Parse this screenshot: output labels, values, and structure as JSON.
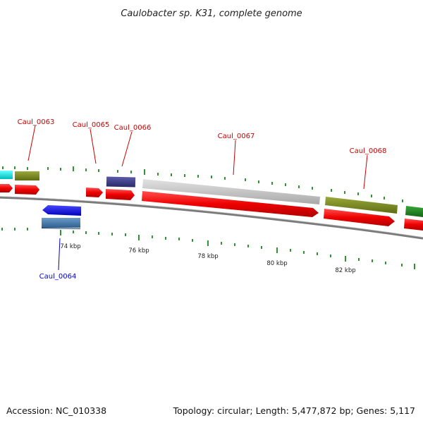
{
  "title": "Caulobacter sp. K31, complete genome",
  "footer": {
    "accession": "Accession: NC_010338",
    "summary": "Topology: circular; Length: 5,477,872 bp; Genes: 5,117"
  },
  "scale": {
    "labels": [
      "74 kbp",
      "76 kbp",
      "78 kbp",
      "80 kbp",
      "82 kbp"
    ]
  },
  "gene_labels": {
    "fwd": [
      "Caul_0063",
      "Caul_0065",
      "Caul_0066",
      "Caul_0067",
      "Caul_0068"
    ],
    "rev": [
      "Caul_0064"
    ]
  },
  "colors": {
    "backbone": "#808080",
    "cds": "#ee0000",
    "tick": "#007700",
    "gene_label_fwd": "#cc0000",
    "gene_label_rev": "#0000cc",
    "feature_cyan": "#00e5e5",
    "feature_olive": "#7a8a1e",
    "feature_navy": "#3a3a8a",
    "feature_gray": "#c8c8c8",
    "feature_green": "#1f8a1f",
    "feature_blue": "#1010ee",
    "feature_steelblue": "#4a82b4"
  }
}
